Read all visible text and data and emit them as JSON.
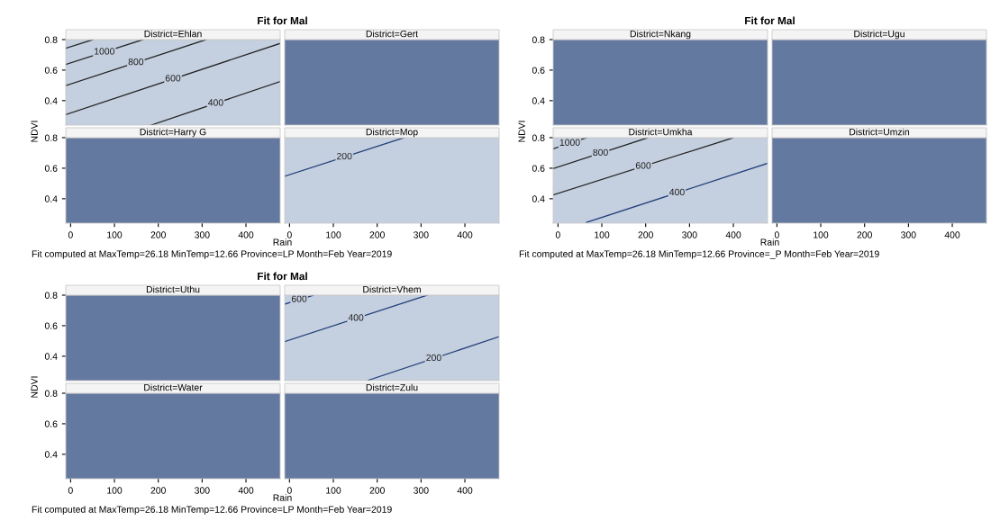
{
  "chart_data": [
    {
      "type": "line",
      "subtitle": "Fit for Mal",
      "title": "District=Ehlan",
      "ylabel": "NDVI",
      "xlim": [
        -11,
        478
      ],
      "ylim": [
        0.24,
        0.8
      ],
      "xticks": [
        0,
        100,
        200,
        300,
        400
      ],
      "yticks": [
        0.4,
        0.6,
        0.8
      ],
      "tick_labels": "y",
      "marker": "none",
      "line_style": "solid",
      "grid": false,
      "legend": false,
      "series": [
        {
          "color": "#222222",
          "x": [
            -11,
            51
          ],
          "values": [
            0.743,
            0.8
          ]
        },
        {
          "name": "1000",
          "color": "#222222",
          "x": [
            -11,
            165
          ],
          "values": [
            0.637,
            0.8
          ]
        },
        {
          "name": "800",
          "color": "#222222",
          "x": [
            -11,
            309
          ],
          "values": [
            0.499,
            0.8
          ]
        },
        {
          "name": "600",
          "color": "#222222",
          "x": [
            -11,
            478
          ],
          "values": [
            0.309,
            0.775
          ]
        },
        {
          "name": "400",
          "color": "#222222",
          "x": [
            184,
            478
          ],
          "values": [
            0.24,
            0.525
          ]
        }
      ]
    },
    {
      "type": "line",
      "title": "District=Gert",
      "xlim": [
        -11,
        478
      ],
      "ylim": [
        0.24,
        0.8
      ],
      "xticks": [
        0,
        100,
        200,
        300,
        400
      ],
      "yticks": [
        0.4,
        0.6,
        0.8
      ],
      "tick_labels": false,
      "grid": false,
      "legend": false
    },
    {
      "type": "line",
      "title": "District=Harry G",
      "xlabel": "Rain",
      "annotations": [
        "Fit computed at MaxTemp=26.18 MinTemp=12.66 Province=LP Month=Feb Year=2019"
      ],
      "xlim": [
        -11,
        478
      ],
      "ylim": [
        0.24,
        0.8
      ],
      "xticks": [
        0,
        100,
        200,
        300,
        400
      ],
      "yticks": [
        0.4,
        0.6,
        0.8
      ],
      "grid": false,
      "legend": false
    },
    {
      "type": "line",
      "title": "District=Mop",
      "xlim": [
        -11,
        478
      ],
      "ylim": [
        0.24,
        0.8
      ],
      "xticks": [
        0,
        100,
        200,
        300,
        400
      ],
      "yticks": [
        0.4,
        0.6,
        0.8
      ],
      "tick_labels": "x",
      "marker": "none",
      "line_style": "solid",
      "grid": false,
      "legend": false,
      "series": [
        {
          "name": "200",
          "color": "#23407a",
          "x": [
            -11,
            261
          ],
          "values": [
            0.547,
            0.8
          ]
        }
      ]
    },
    {
      "type": "line",
      "subtitle": "Fit for Mal",
      "title": "District=Nkang",
      "ylabel": "NDVI",
      "xlim": [
        -11,
        478
      ],
      "ylim": [
        0.24,
        0.8
      ],
      "xticks": [
        0,
        100,
        200,
        300,
        400
      ],
      "yticks": [
        0.4,
        0.6,
        0.8
      ],
      "tick_labels": "y",
      "grid": false,
      "legend": false
    },
    {
      "type": "line",
      "title": "District=Ugu",
      "xlim": [
        -11,
        478
      ],
      "ylim": [
        0.24,
        0.8
      ],
      "xticks": [
        0,
        100,
        200,
        300,
        400
      ],
      "yticks": [
        0.4,
        0.6,
        0.8
      ],
      "tick_labels": false,
      "grid": false,
      "legend": false
    },
    {
      "type": "line",
      "title": "District=Umkha",
      "xlabel": "Rain",
      "annotations": [
        "Fit computed at MaxTemp=26.18 MinTemp=12.66 Province=_P Month=Feb Year=2019"
      ],
      "xlim": [
        -11,
        478
      ],
      "ylim": [
        0.24,
        0.8
      ],
      "xticks": [
        0,
        100,
        200,
        300,
        400
      ],
      "yticks": [
        0.4,
        0.6,
        0.8
      ],
      "marker": "none",
      "line_style": "solid",
      "grid": false,
      "legend": false,
      "series": [
        {
          "name": "1000",
          "color": "#222222",
          "x": [
            -11,
            65
          ],
          "values": [
            0.727,
            0.8
          ]
        },
        {
          "name": "800",
          "color": "#222222",
          "x": [
            -11,
            205
          ],
          "values": [
            0.597,
            0.8
          ]
        },
        {
          "name": "600",
          "color": "#222222",
          "x": [
            -11,
            400
          ],
          "values": [
            0.425,
            0.8
          ]
        },
        {
          "name": "400",
          "color": "#23407a",
          "x": [
            65,
            478
          ],
          "values": [
            0.245,
            0.632
          ]
        }
      ]
    },
    {
      "type": "line",
      "title": "District=Umzin",
      "xlim": [
        -11,
        478
      ],
      "ylim": [
        0.24,
        0.8
      ],
      "xticks": [
        0,
        100,
        200,
        300,
        400
      ],
      "yticks": [
        0.4,
        0.6,
        0.8
      ],
      "tick_labels": "x",
      "grid": false,
      "legend": false
    },
    {
      "type": "line",
      "subtitle": "Fit for Mal",
      "title": "District=Uthu",
      "ylabel": "NDVI",
      "xlim": [
        -11,
        478
      ],
      "ylim": [
        0.24,
        0.8
      ],
      "xticks": [
        0,
        100,
        200,
        300,
        400
      ],
      "yticks": [
        0.4,
        0.6,
        0.8
      ],
      "tick_labels": "y",
      "grid": false,
      "legend": false
    },
    {
      "type": "line",
      "title": "District=Vhem",
      "xlim": [
        -11,
        478
      ],
      "ylim": [
        0.24,
        0.8
      ],
      "xticks": [
        0,
        100,
        200,
        300,
        400
      ],
      "yticks": [
        0.4,
        0.6,
        0.8
      ],
      "tick_labels": false,
      "marker": "none",
      "line_style": "solid",
      "grid": false,
      "legend": false,
      "series": [
        {
          "name": "600",
          "color": "#23407a",
          "x": [
            -11,
            55
          ],
          "values": [
            0.741,
            0.8
          ]
        },
        {
          "name": "400",
          "color": "#23407a",
          "x": [
            -11,
            314
          ],
          "values": [
            0.496,
            0.8
          ]
        },
        {
          "name": "200",
          "color": "#23407a",
          "x": [
            180,
            478
          ],
          "values": [
            0.243,
            0.528
          ]
        }
      ]
    },
    {
      "type": "line",
      "title": "District=Water",
      "xlabel": "Rain",
      "annotations": [
        "Fit computed at MaxTemp=26.18 MinTemp=12.66 Province=LP Month=Feb Year=2019"
      ],
      "xlim": [
        -11,
        478
      ],
      "ylim": [
        0.24,
        0.8
      ],
      "xticks": [
        0,
        100,
        200,
        300,
        400
      ],
      "yticks": [
        0.4,
        0.6,
        0.8
      ],
      "grid": false,
      "legend": false
    },
    {
      "type": "line",
      "title": "District=Zulu",
      "xlim": [
        -11,
        478
      ],
      "ylim": [
        0.24,
        0.8
      ],
      "xticks": [
        0,
        100,
        200,
        300,
        400
      ],
      "yticks": [
        0.4,
        0.6,
        0.8
      ],
      "tick_labels": "x",
      "grid": false,
      "legend": false
    }
  ]
}
